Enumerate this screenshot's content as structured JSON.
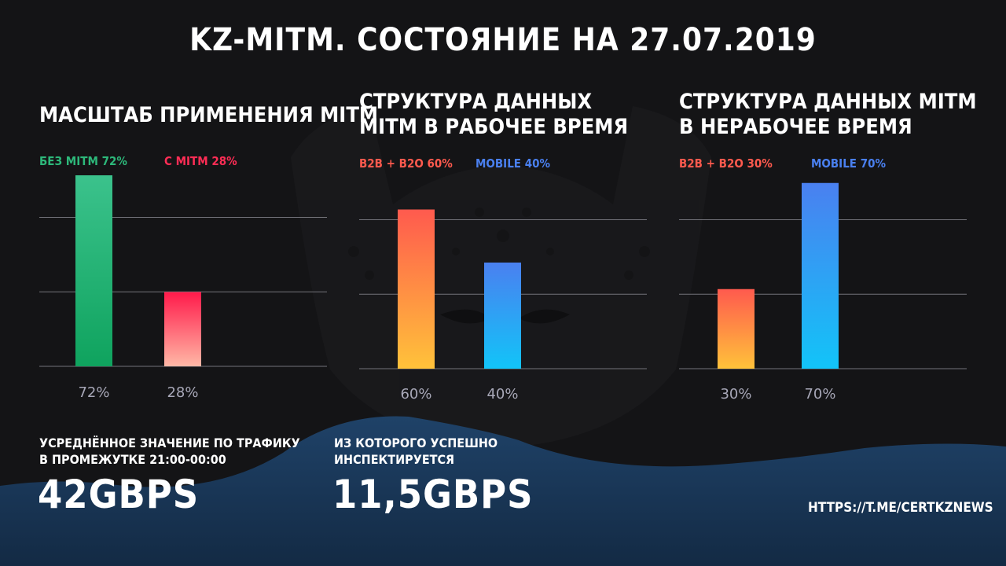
{
  "title": "KZ-MITM. СОСТОЯНИЕ НА 27.07.2019",
  "charts": {
    "scale": {
      "title_line1": "МАСШТАБ ПРИМЕНЕНИЯ MITM",
      "legend_a": "БЕЗ MITM 72%",
      "legend_b": "С MITM 28%"
    },
    "work": {
      "title_line1": "СТРУКТУРА ДАННЫХ",
      "title_line2": "MITM В РАБОЧЕЕ ВРЕМЯ",
      "legend_a": "B2B + B2O 60%",
      "legend_b": "MOBILE 40%"
    },
    "offwork": {
      "title_line1": "СТРУКТУРА ДАННЫХ MITM",
      "title_line2": "В НЕРАБОЧЕЕ ВРЕМЯ",
      "legend_a": "B2B + B2O 30%",
      "legend_b": "MOBILE 70%"
    }
  },
  "chart_data": [
    {
      "type": "bar",
      "title": "МАСШТАБ ПРИМЕНЕНИЯ MITM",
      "categories": [
        "БЕЗ MITM",
        "С MITM"
      ],
      "values": [
        72,
        28
      ],
      "value_labels": [
        "72%",
        "28%"
      ],
      "ylim": [
        0,
        80
      ],
      "grid": true,
      "colors": [
        "#2DB87A",
        "#FF2D55"
      ]
    },
    {
      "type": "bar",
      "title": "СТРУКТУРА ДАННЫХ MITM В РАБОЧЕЕ ВРЕМЯ",
      "categories": [
        "B2B + B2O",
        "MOBILE"
      ],
      "values": [
        60,
        40
      ],
      "value_labels": [
        "60%",
        "40%"
      ],
      "ylim": [
        0,
        80
      ],
      "grid": true,
      "colors": [
        "#FF5A4E",
        "#4A80F0"
      ]
    },
    {
      "type": "bar",
      "title": "СТРУКТУРА ДАННЫХ MITM В НЕРАБОЧЕЕ ВРЕМЯ",
      "categories": [
        "B2B + B2O",
        "MOBILE"
      ],
      "values": [
        30,
        70
      ],
      "value_labels": [
        "30%",
        "70%"
      ],
      "ylim": [
        0,
        80
      ],
      "grid": true,
      "colors": [
        "#FF5A4E",
        "#4A80F0"
      ]
    }
  ],
  "stats": {
    "avg_label_line1": "УСРЕДНЁННОЕ ЗНАЧЕНИЕ ПО ТРАФИКУ",
    "avg_label_line2": "В ПРОМЕЖУТКЕ 21:00-00:00",
    "avg_value": "42GBPS",
    "insp_label_line1": "ИЗ КОТОРОГО УСПЕШНО",
    "insp_label_line2": "ИНСПЕКТИРУЕТСЯ",
    "insp_value": "11,5GBPS"
  },
  "link": "HTTPS://T.ME/CERTKZNEWS",
  "colors": {
    "background": "#141416",
    "wave": "#1B3A5C",
    "green": "#2DB87A",
    "red": "#FF2D55",
    "orange": "#FF5A4E",
    "blue": "#4A80F0",
    "grid": "#8A8A92",
    "tick": "#A8A8B8"
  }
}
